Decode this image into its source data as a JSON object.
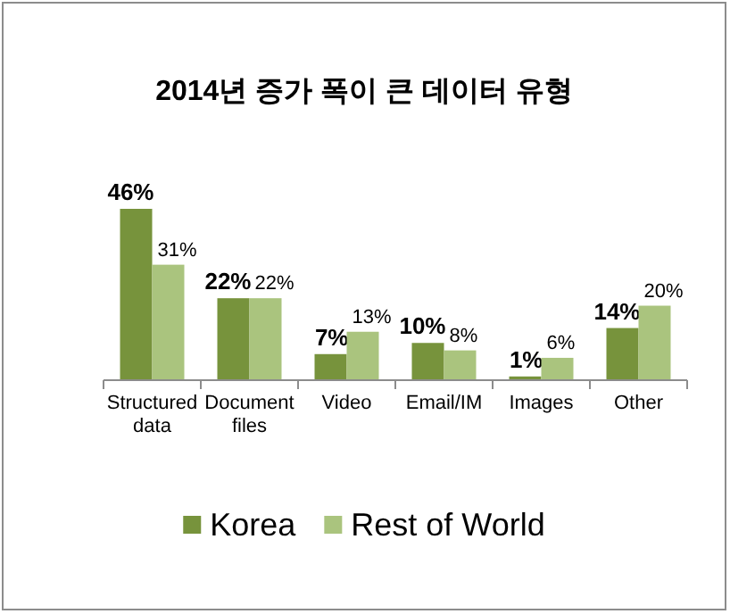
{
  "chart_data": {
    "type": "bar",
    "title": "2014년 증가 폭이 큰 데이터 유형",
    "categories": [
      "Structured data",
      "Document files",
      "Video",
      "Email/IM",
      "Images",
      "Other"
    ],
    "series": [
      {
        "name": "Korea",
        "color": "#77933c",
        "values": [
          46,
          22,
          7,
          10,
          1,
          14
        ],
        "value_labels": [
          "46%",
          "22%",
          "7%",
          "10%",
          "1%",
          "14%"
        ]
      },
      {
        "name": "Rest of World",
        "color": "#aac47e",
        "values": [
          31,
          22,
          13,
          8,
          6,
          20
        ],
        "value_labels": [
          "31%",
          "22%",
          "13%",
          "8%",
          "6%",
          "20%"
        ]
      }
    ],
    "legend": "bottom"
  }
}
